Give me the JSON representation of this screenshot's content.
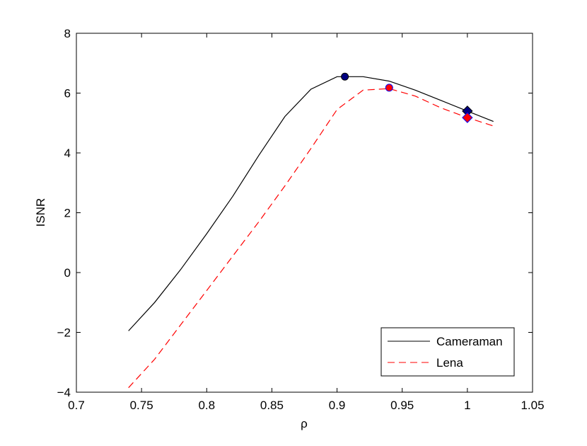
{
  "chart_data": {
    "type": "line",
    "title": "",
    "xlabel": "ρ",
    "ylabel": "ISNR",
    "xlim": [
      0.7,
      1.05
    ],
    "ylim": [
      -4,
      8
    ],
    "xticks": [
      0.7,
      0.75,
      0.8,
      0.85,
      0.9,
      0.95,
      1,
      1.05
    ],
    "xtick_labels": [
      "0.7",
      "0.75",
      "0.8",
      "0.85",
      "0.9",
      "0.95",
      "1",
      "1.05"
    ],
    "yticks": [
      -4,
      -2,
      0,
      2,
      4,
      6,
      8
    ],
    "ytick_labels": [
      "−4",
      "−2",
      "0",
      "2",
      "4",
      "6",
      "8"
    ],
    "grid": false,
    "legend_position": "bottom-right",
    "series": [
      {
        "name": "Cameraman",
        "style": "solid",
        "color": "#000000",
        "x": [
          0.74,
          0.76,
          0.78,
          0.8,
          0.82,
          0.84,
          0.86,
          0.88,
          0.9,
          0.92,
          0.94,
          0.96,
          0.98,
          1.0,
          1.02
        ],
        "y": [
          -1.95,
          -1.0,
          0.1,
          1.3,
          2.55,
          3.92,
          5.22,
          6.13,
          6.55,
          6.55,
          6.4,
          6.1,
          5.75,
          5.4,
          5.05
        ]
      },
      {
        "name": "Lena",
        "style": "dashed",
        "color": "#ff0000",
        "x": [
          0.74,
          0.76,
          0.78,
          0.8,
          0.82,
          0.84,
          0.86,
          0.88,
          0.9,
          0.92,
          0.94,
          0.96,
          0.98,
          1.0,
          1.02
        ],
        "y": [
          -3.85,
          -2.9,
          -1.75,
          -0.6,
          0.55,
          1.7,
          2.9,
          4.15,
          5.45,
          6.1,
          6.15,
          5.9,
          5.5,
          5.18,
          4.9
        ]
      }
    ],
    "markers": [
      {
        "series": "Cameraman",
        "shape": "circle",
        "x": 0.906,
        "y": 6.55,
        "fill": "#000080",
        "edge": "#000000"
      },
      {
        "series": "Lena",
        "shape": "circle",
        "x": 0.94,
        "y": 6.18,
        "fill": "#ff0000",
        "edge": "#0000ff"
      },
      {
        "series": "Cameraman",
        "shape": "diamond",
        "x": 1.0,
        "y": 5.4,
        "fill": "#000080",
        "edge": "#000000"
      },
      {
        "series": "Lena",
        "shape": "diamond",
        "x": 1.0,
        "y": 5.18,
        "fill": "#ff0000",
        "edge": "#0000ff"
      }
    ]
  }
}
